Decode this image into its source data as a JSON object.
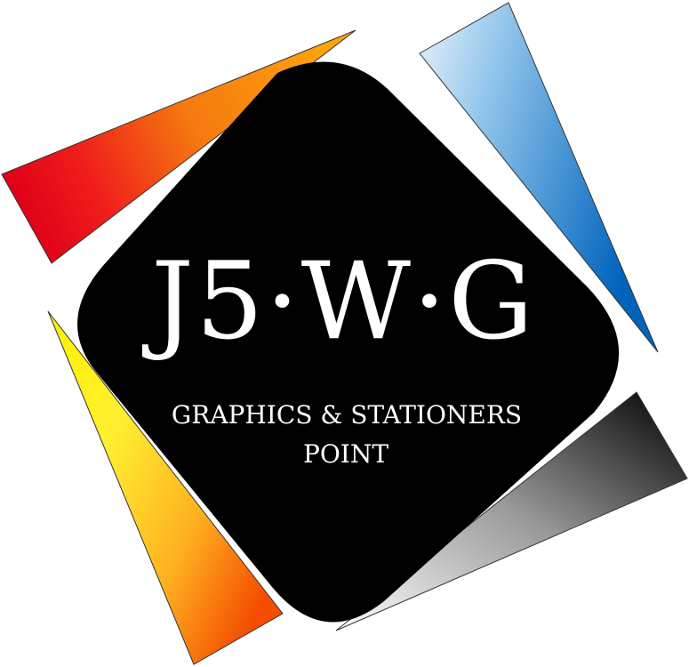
{
  "logo": {
    "brand_mark": "J5·W·G",
    "tagline_line1": "GRAPHICS & STATIONERS",
    "tagline_line2": "POINT"
  },
  "colors": {
    "background": "#ffffff",
    "badge": "#000000",
    "text": "#ffffff",
    "red_orange_start": "#e8001c",
    "red_orange_end": "#ff9a00",
    "blue_light": "#d6eaf8",
    "blue_dark": "#0072c6",
    "yellow": "#ffff20",
    "orange": "#f25c00",
    "gray_light": "#ffffff",
    "gray_dark": "#000000"
  },
  "shapes": [
    "red-orange-triangle",
    "blue-triangle",
    "yellow-orange-triangle",
    "gray-black-triangle",
    "black-rounded-diamond"
  ]
}
